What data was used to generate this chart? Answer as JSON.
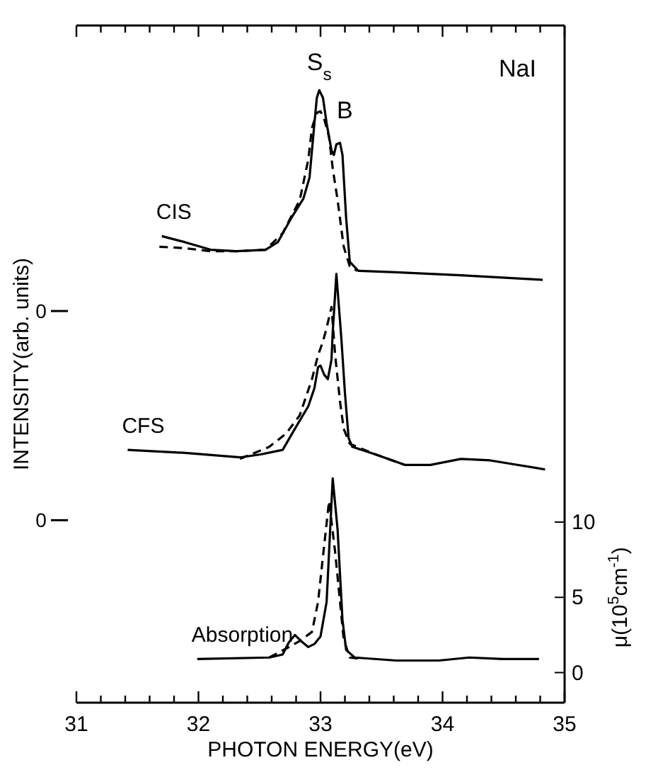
{
  "chart_data": {
    "type": "line",
    "xlabel": "PHOTON ENERGY(eV)",
    "ylabel": "μ(10$^{5}$cm$^{-1}$)",
    "xlim": [
      31,
      35
    ],
    "xticks": [
      31,
      {
        "value": 31.2,
        "label": null
      },
      {
        "value": 31.4,
        "label": null
      },
      {
        "value": 31.6,
        "label": null
      },
      {
        "value": 31.8,
        "label": null
      },
      32,
      {
        "value": 32.2,
        "label": null
      },
      {
        "value": 32.4,
        "label": null
      },
      {
        "value": 32.6,
        "label": null
      },
      {
        "value": 32.8,
        "label": null
      },
      33,
      {
        "value": 33.2,
        "label": null
      },
      {
        "value": 33.4,
        "label": null
      },
      {
        "value": 33.6,
        "label": null
      },
      {
        "value": 33.8,
        "label": null
      },
      34,
      {
        "value": 34.2,
        "label": null
      },
      {
        "value": 34.4,
        "label": null
      },
      {
        "value": 34.6,
        "label": null
      },
      {
        "value": 34.8,
        "label": null
      },
      35
    ],
    "ylim": [
      -2,
      43
    ],
    "yticks": [
      0,
      5,
      10
    ],
    "grid": false,
    "marker": "none",
    "series": [
      {
        "name": "CIS",
        "color": "#000000",
        "line_style": "solid",
        "x": [
          31.7,
          31.89,
          32.1,
          32.31,
          32.55,
          32.65,
          32.76,
          32.86,
          32.91,
          32.95,
          32.97,
          32.99,
          33.02,
          33.05,
          33.09,
          33.11,
          33.13,
          33.16,
          33.18,
          33.21,
          33.24,
          33.31,
          33.62,
          34.15,
          34.82
        ],
        "values": [
          29.0,
          28.6,
          28.1,
          28.0,
          28.1,
          28.6,
          30.2,
          31.5,
          32.9,
          36.5,
          38.2,
          38.7,
          38.2,
          36.5,
          34.7,
          34.4,
          35.1,
          35.2,
          34.4,
          30.2,
          27.3,
          26.7,
          26.6,
          26.4,
          26.1
        ]
      },
      {
        "color": "#000000",
        "line_style": "dashed",
        "x": [
          31.68,
          31.89,
          32.1,
          32.31,
          32.55,
          32.69,
          32.83,
          32.9,
          32.93,
          32.97,
          33.0,
          33.03,
          33.07,
          33.1,
          33.14,
          33.19,
          33.24,
          33.3
        ],
        "values": [
          28.3,
          28.2,
          28.0,
          28.0,
          28.1,
          29.2,
          31.4,
          34.1,
          36.2,
          37.2,
          37.3,
          36.8,
          35.6,
          33.5,
          31.4,
          28.3,
          27.0,
          26.7
        ]
      },
      {
        "name": "CFS",
        "color": "#000000",
        "line_style": "solid",
        "x": [
          31.42,
          31.89,
          32.34,
          32.51,
          32.69,
          32.79,
          32.9,
          32.95,
          32.98,
          33.0,
          33.03,
          33.06,
          33.09,
          33.1,
          33.13,
          33.17,
          33.2,
          33.23,
          33.26,
          33.45,
          33.69,
          33.9,
          34.15,
          34.39,
          34.84
        ],
        "values": [
          14.8,
          14.6,
          14.3,
          14.5,
          14.8,
          16.2,
          17.7,
          18.9,
          20.3,
          20.4,
          19.8,
          19.5,
          20.8,
          22.6,
          26.5,
          22.3,
          18.6,
          15.6,
          15.0,
          14.5,
          13.8,
          13.8,
          14.2,
          14.1,
          13.5
        ]
      },
      {
        "color": "#000000",
        "line_style": "dashed",
        "x": [
          32.34,
          32.58,
          32.72,
          32.83,
          32.93,
          32.98,
          33.02,
          33.05,
          33.09,
          33.12,
          33.16,
          33.19,
          33.24,
          33.45,
          33.69
        ],
        "values": [
          14.2,
          15.0,
          15.9,
          17.1,
          19.5,
          21.1,
          22.0,
          22.9,
          24.3,
          21.1,
          18.0,
          16.2,
          15.2,
          14.5,
          13.8
        ]
      },
      {
        "name": "Absorption",
        "color": "#000000",
        "line_style": "solid",
        "x": [
          31.99,
          32.58,
          32.69,
          32.74,
          32.79,
          32.84,
          32.9,
          32.95,
          33.0,
          33.05,
          33.07,
          33.1,
          33.14,
          33.16,
          33.18,
          33.21,
          33.28,
          33.62,
          33.97,
          34.22,
          34.49,
          34.79
        ],
        "values": [
          0.9,
          1.0,
          1.2,
          2.0,
          2.5,
          2.1,
          1.7,
          1.9,
          2.4,
          4.7,
          8.0,
          12.9,
          9.5,
          6.5,
          3.5,
          1.5,
          1.0,
          0.8,
          0.8,
          1.0,
          0.9,
          0.9
        ]
      },
      {
        "color": "#000000",
        "line_style": "dashed",
        "x": [
          32.58,
          32.72,
          32.83,
          32.93,
          32.98,
          33.02,
          33.07,
          33.12,
          33.16,
          33.19,
          33.24,
          33.35
        ],
        "values": [
          1.0,
          1.6,
          2.1,
          2.7,
          4.7,
          7.7,
          11.4,
          8.0,
          4.7,
          2.2,
          1.0,
          0.9
        ]
      }
    ],
    "annotations": [
      "INTENSITY(arb. units)",
      "S$_{s}$",
      "B",
      "NaI",
      "0",
      "0"
    ]
  }
}
